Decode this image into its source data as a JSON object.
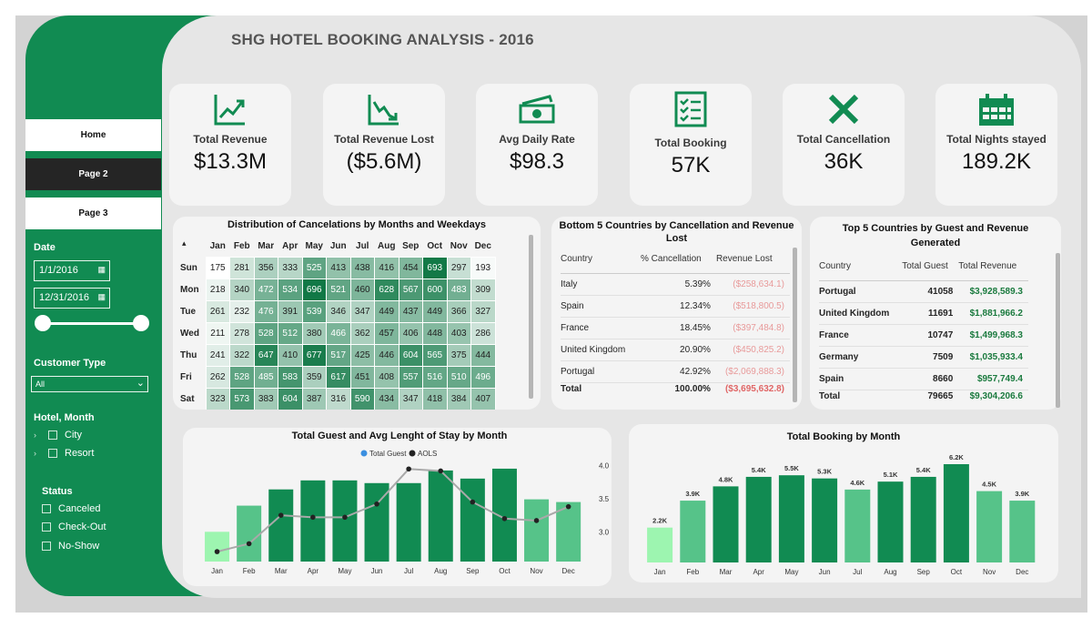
{
  "title": "SHG HOTEL BOOKING ANALYSIS - 2016",
  "nav": {
    "home": "Home",
    "page2": "Page 2",
    "page3": "Page 3"
  },
  "filters": {
    "date_label": "Date",
    "date_start": "1/1/2016",
    "date_end": "12/31/2016",
    "customer_type_label": "Customer Type",
    "customer_type_value": "All",
    "hotel_month_label": "Hotel, Month",
    "hotel_options": [
      "City",
      "Resort"
    ],
    "status_label": "Status",
    "status_options": [
      "Canceled",
      "Check-Out",
      "No-Show"
    ]
  },
  "kpis": [
    {
      "label": "Total Revenue",
      "value": "$13.3M",
      "icon": "chart-up-icon"
    },
    {
      "label": "Total Revenue Lost",
      "value": "($5.6M)",
      "icon": "chart-down-icon"
    },
    {
      "label": "Avg Daily Rate",
      "value": "$98.3",
      "icon": "cash-icon"
    },
    {
      "label": "Total Booking",
      "value": "57K",
      "icon": "checklist-icon"
    },
    {
      "label": "Total Cancellation",
      "value": "36K",
      "icon": "x-icon"
    },
    {
      "label": "Total Nights stayed",
      "value": "189.2K",
      "icon": "calendar-icon"
    }
  ],
  "heatmap": {
    "title": "Distribution of Cancelations by Months and Weekdays",
    "months": [
      "Jan",
      "Feb",
      "Mar",
      "Apr",
      "May",
      "Jun",
      "Jul",
      "Aug",
      "Sep",
      "Oct",
      "Nov",
      "Dec"
    ],
    "rows": [
      {
        "day": "Sun",
        "values": [
          175,
          281,
          356,
          333,
          525,
          413,
          438,
          416,
          454,
          693,
          297,
          193
        ]
      },
      {
        "day": "Mon",
        "values": [
          218,
          340,
          472,
          534,
          696,
          521,
          460,
          628,
          567,
          600,
          483,
          309
        ]
      },
      {
        "day": "Tue",
        "values": [
          261,
          232,
          476,
          391,
          539,
          346,
          347,
          449,
          437,
          449,
          366,
          327
        ]
      },
      {
        "day": "Wed",
        "values": [
          211,
          278,
          528,
          512,
          380,
          466,
          362,
          457,
          406,
          448,
          403,
          286
        ]
      },
      {
        "day": "Thu",
        "values": [
          241,
          322,
          647,
          410,
          677,
          517,
          425,
          446,
          604,
          565,
          375,
          444
        ]
      },
      {
        "day": "Fri",
        "values": [
          262,
          528,
          485,
          583,
          359,
          617,
          451,
          408,
          557,
          516,
          510,
          496
        ]
      },
      {
        "day": "Sat",
        "values": [
          323,
          573,
          383,
          604,
          387,
          316,
          590,
          434,
          347,
          418,
          384,
          407
        ]
      }
    ]
  },
  "bottom5": {
    "title": "Bottom 5 Countries by Cancellation and Revenue Lost",
    "headers": [
      "Country",
      "% Cancellation",
      "Revenue Lost"
    ],
    "rows": [
      [
        "Italy",
        "5.39%",
        "($258,634.1)"
      ],
      [
        "Spain",
        "12.34%",
        "($518,800.5)"
      ],
      [
        "France",
        "18.45%",
        "($397,484.8)"
      ],
      [
        "United Kingdom",
        "20.90%",
        "($450,825.2)"
      ],
      [
        "Portugal",
        "42.92%",
        "($2,069,888.3)"
      ]
    ],
    "total": [
      "Total",
      "100.00%",
      "($3,695,632.8)"
    ]
  },
  "top5": {
    "title": "Top 5 Countries by Guest and Revenue Generated",
    "headers": [
      "Country",
      "Total Guest",
      "Total Revenue"
    ],
    "rows": [
      [
        "Portugal",
        "41058",
        "$3,928,589.3"
      ],
      [
        "United Kingdom",
        "11691",
        "$1,881,966.2"
      ],
      [
        "France",
        "10747",
        "$1,499,968.3"
      ],
      [
        "Germany",
        "7509",
        "$1,035,933.4"
      ],
      [
        "Spain",
        "8660",
        "$957,749.4"
      ]
    ],
    "total": [
      "Total",
      "79665",
      "$9,304,206.6"
    ]
  },
  "chart_data": [
    {
      "type": "bar",
      "title": "Total Guest and Avg Lenght of Stay by Month",
      "legend": [
        "Total Guest",
        "AOLS"
      ],
      "categories": [
        "Jan",
        "Feb",
        "Mar",
        "Apr",
        "May",
        "Jun",
        "Jul",
        "Aug",
        "Sep",
        "Oct",
        "Nov",
        "Dec"
      ],
      "series": [
        {
          "name": "Total Guest",
          "values": [
            3300,
            6200,
            8000,
            9000,
            9000,
            8700,
            8700,
            10100,
            9200,
            10300,
            6900,
            6600
          ]
        },
        {
          "name": "AOLS",
          "values": [
            2.7,
            2.82,
            3.25,
            3.22,
            3.22,
            3.42,
            3.95,
            3.92,
            3.45,
            3.2,
            3.17,
            3.38
          ]
        }
      ],
      "y2_ticks": [
        "3.0",
        "3.5",
        "4.0"
      ],
      "y2lim": [
        2.55,
        4.05
      ],
      "highlight_colors": {
        "max": "#118b52",
        "mid": "#56c389",
        "min": "#9df5b0"
      }
    },
    {
      "type": "bar",
      "title": "Total Booking by Month",
      "categories": [
        "Jan",
        "Feb",
        "Mar",
        "Apr",
        "May",
        "Jun",
        "Jul",
        "Aug",
        "Sep",
        "Oct",
        "Nov",
        "Dec"
      ],
      "values": [
        2.2,
        3.9,
        4.8,
        5.4,
        5.5,
        5.3,
        4.6,
        5.1,
        5.4,
        6.2,
        4.5,
        3.9
      ],
      "labels": [
        "2.2K",
        "3.9K",
        "4.8K",
        "5.4K",
        "5.5K",
        "5.3K",
        "4.6K",
        "5.1K",
        "5.4K",
        "6.2K",
        "4.5K",
        "3.9K"
      ],
      "highlight_colors": {
        "max": "#118b52",
        "mid": "#56c389",
        "min": "#9df5b0"
      }
    }
  ]
}
